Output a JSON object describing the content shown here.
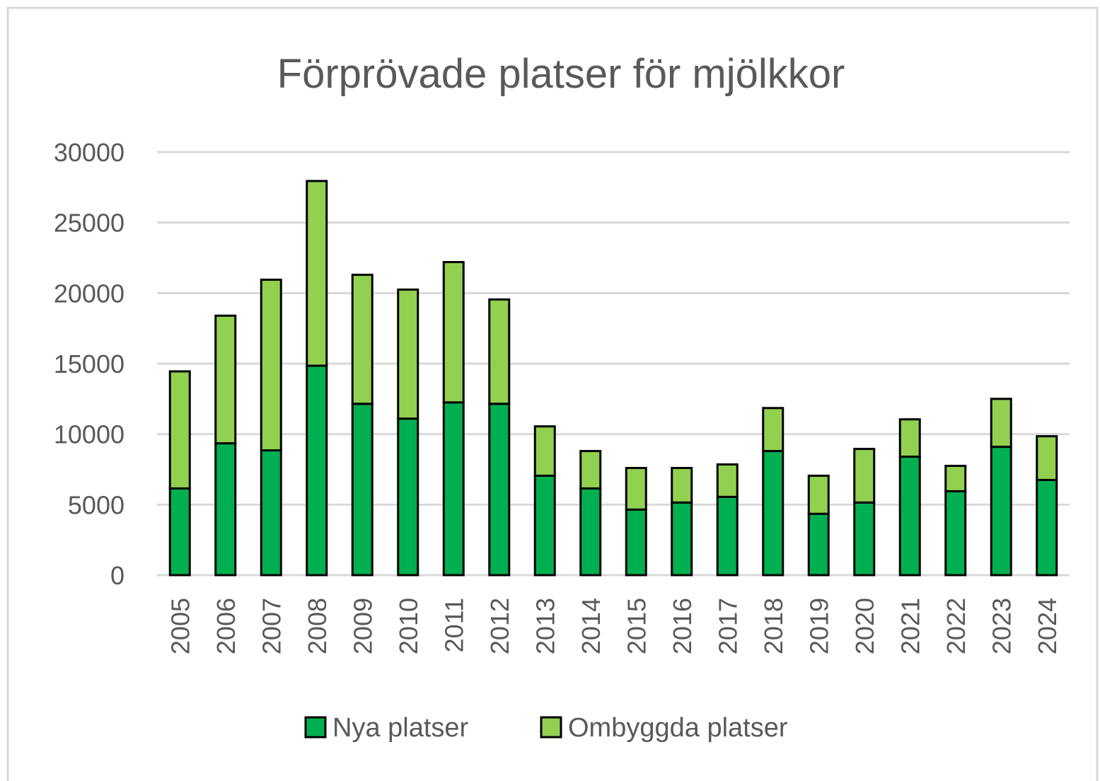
{
  "chart_data": {
    "type": "stacked_bar",
    "title": "Förprövade platser för mjölkkor",
    "categories": [
      "2005",
      "2006",
      "2007",
      "2008",
      "2009",
      "2010",
      "2011",
      "2012",
      "2013",
      "2014",
      "2015",
      "2016",
      "2017",
      "2018",
      "2019",
      "2020",
      "2021",
      "2022",
      "2023",
      "2024"
    ],
    "series": [
      {
        "name": "Nya platser",
        "color": "#00b050",
        "values": [
          6150,
          9350,
          8850,
          14850,
          12150,
          11100,
          12250,
          12150,
          7050,
          6150,
          4650,
          5150,
          5550,
          8800,
          4350,
          5150,
          8400,
          5950,
          9100,
          6750
        ]
      },
      {
        "name": "Ombyggda platser",
        "color": "#92d050",
        "values": [
          8300,
          9050,
          12100,
          13100,
          9150,
          9150,
          9950,
          7400,
          3500,
          2650,
          2950,
          2450,
          2300,
          3050,
          2700,
          3800,
          2650,
          1800,
          3400,
          3100
        ]
      }
    ],
    "ylim": [
      0,
      30000
    ],
    "yticks": [
      0,
      5000,
      10000,
      15000,
      20000,
      25000,
      30000
    ],
    "grid": true,
    "legend": "bottom"
  }
}
